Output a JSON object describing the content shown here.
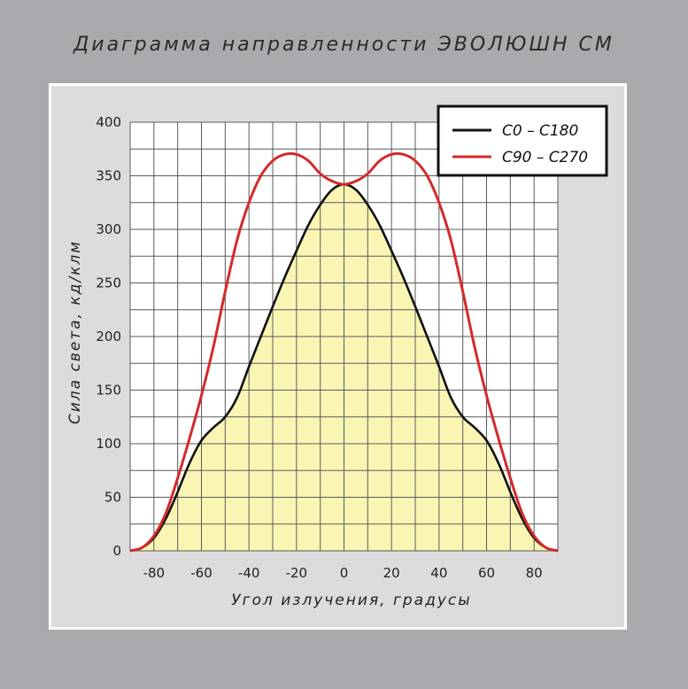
{
  "title": "Диаграмма направленности ЭВОЛЮШН СМ",
  "colors": {
    "background": "#aaa9ae",
    "panel": "#dcdcde",
    "plot": "#ffffff",
    "fill": "#fbf5b4",
    "series_c0": "#111111",
    "series_c90": "#d42a2a"
  },
  "chart_data": {
    "type": "line",
    "title": "Диаграмма направленности ЭВОЛЮШН СМ",
    "xlabel": "Угол излучения, градусы",
    "ylabel": "Сила света, кд/клм",
    "xlim": [
      -90,
      90
    ],
    "ylim": [
      0,
      400
    ],
    "x_ticks": [
      -80,
      -60,
      -40,
      -20,
      0,
      20,
      40,
      60,
      80
    ],
    "y_ticks": [
      0,
      50,
      100,
      150,
      200,
      250,
      300,
      350,
      400
    ],
    "grid": true,
    "grid_x_step": 10,
    "grid_y_step": 25,
    "legend_position": "top-right",
    "series": [
      {
        "name": "C0 – C180",
        "color": "#111111",
        "filled": true,
        "x": [
          -90,
          -85,
          -80,
          -75,
          -70,
          -65,
          -60,
          -55,
          -50,
          -45,
          -40,
          -35,
          -30,
          -25,
          -20,
          -15,
          -10,
          -5,
          0,
          5,
          10,
          15,
          20,
          25,
          30,
          35,
          40,
          45,
          50,
          55,
          60,
          65,
          70,
          75,
          80,
          85,
          90
        ],
        "y": [
          0,
          3,
          12,
          30,
          55,
          82,
          103,
          115,
          125,
          143,
          172,
          200,
          228,
          255,
          280,
          304,
          323,
          337,
          342,
          337,
          323,
          304,
          280,
          255,
          228,
          200,
          172,
          143,
          125,
          115,
          103,
          82,
          55,
          30,
          12,
          3,
          0
        ]
      },
      {
        "name": "C90 – C270",
        "color": "#d42a2a",
        "filled": false,
        "x": [
          -90,
          -85,
          -80,
          -75,
          -70,
          -65,
          -60,
          -55,
          -50,
          -45,
          -40,
          -35,
          -30,
          -25,
          -20,
          -15,
          -10,
          -5,
          0,
          5,
          10,
          15,
          20,
          25,
          30,
          35,
          40,
          45,
          50,
          55,
          60,
          65,
          70,
          75,
          80,
          85,
          90
        ],
        "y": [
          0,
          3,
          14,
          35,
          68,
          105,
          145,
          190,
          242,
          290,
          325,
          350,
          364,
          370,
          370,
          364,
          352,
          345,
          342,
          345,
          352,
          364,
          370,
          370,
          364,
          350,
          325,
          290,
          242,
          190,
          145,
          105,
          68,
          35,
          14,
          3,
          0
        ]
      }
    ]
  }
}
